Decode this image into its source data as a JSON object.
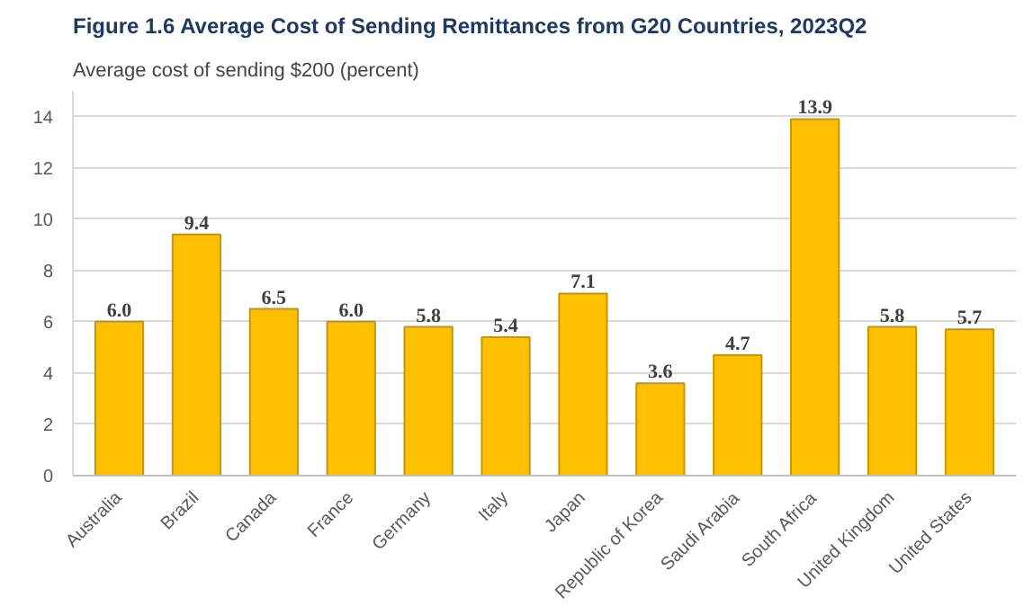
{
  "chart_data": {
    "type": "bar",
    "title": "Figure 1.6 Average Cost of Sending Remittances from G20 Countries, 2023Q2",
    "ylabel": "Average cost of sending $200 (percent)",
    "categories": [
      "Australia",
      "Brazil",
      "Canada",
      "France",
      "Germany",
      "Italy",
      "Japan",
      "Republic of Korea",
      "Saudi Arabia",
      "South Africa",
      "United Kingdom",
      "United States"
    ],
    "values": [
      6.0,
      9.4,
      6.5,
      6.0,
      5.8,
      5.4,
      7.1,
      3.6,
      4.7,
      13.9,
      5.8,
      5.7
    ],
    "value_labels": [
      "6.0",
      "9.4",
      "6.5",
      "6.0",
      "5.8",
      "5.4",
      "7.1",
      "3.6",
      "4.7",
      "13.9",
      "5.8",
      "5.7"
    ],
    "color": "#ffc000",
    "ylim": [
      0,
      15
    ],
    "yticks": [
      0,
      2,
      4,
      6,
      8,
      10,
      12,
      14
    ],
    "grid": "y"
  }
}
